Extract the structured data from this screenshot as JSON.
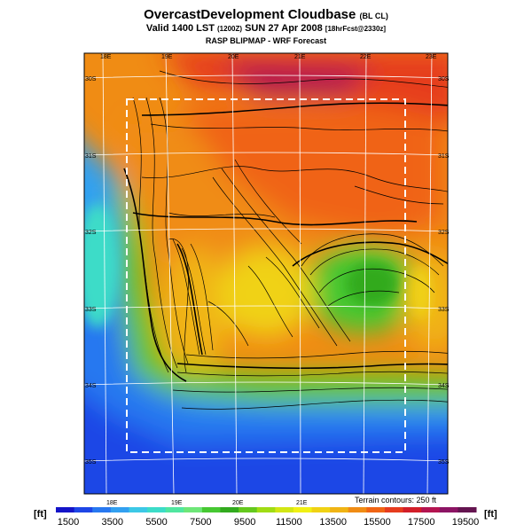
{
  "header": {
    "title": "OvercastDevelopment Cloudbase",
    "title_suffix": "(BL CL)",
    "valid_main": "Valid 1400 LST",
    "valid_utc": "(1200Z)",
    "valid_date": "SUN 27 Apr 2008",
    "valid_fcst": "[18hrFcst@2330z]",
    "subtitle": "RASP BLIPMAP - WRF Forecast"
  },
  "map": {
    "lon_labels": [
      "18E",
      "19E",
      "20E",
      "21E",
      "22E",
      "23E"
    ],
    "lat_labels": [
      "30S",
      "31S",
      "32S",
      "33S",
      "34S",
      "35S"
    ],
    "terrain_note": "Terrain contours: 250 ft"
  },
  "colorbar": {
    "unit": "[ft]",
    "tick_labels": [
      "1500",
      "3500",
      "5500",
      "7500",
      "9500",
      "11500",
      "13500",
      "15500",
      "17500",
      "19500"
    ],
    "colors": [
      "#1414c8",
      "#1e46e6",
      "#2878f0",
      "#32a0f0",
      "#3cc8e6",
      "#3cdcc8",
      "#50e6a0",
      "#6ee678",
      "#46c832",
      "#32aa1e",
      "#64c81e",
      "#a0dc14",
      "#d2e614",
      "#f0f014",
      "#f0d214",
      "#f0b414",
      "#f08c14",
      "#f06414",
      "#e63c1e",
      "#d21e28",
      "#b41450",
      "#8c1464",
      "#641450"
    ]
  }
}
